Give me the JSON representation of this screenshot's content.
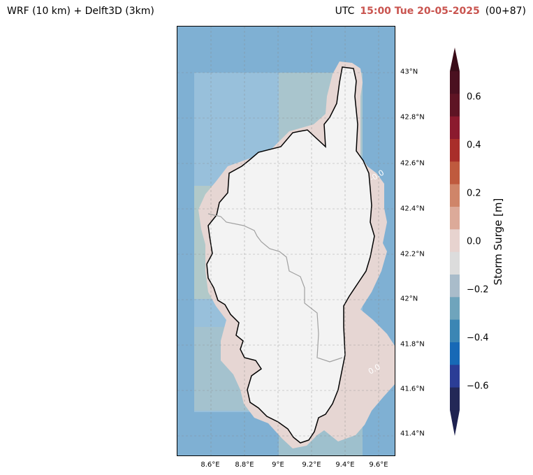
{
  "header": {
    "left_title": "WRF (10 km) + Delft3D (3km)",
    "utc_label": "UTC",
    "time": "15:00 Tue 20-05-2025",
    "forecast_hour": "(00+87)"
  },
  "map": {
    "lat_labels": [
      "43°N",
      "42.8°N",
      "42.6°N",
      "42.4°N",
      "42.2°N",
      "42°N",
      "41.8°N",
      "41.6°N",
      "41.4°N"
    ],
    "lon_labels": [
      "8.6°E",
      "8.8°E",
      "9°E",
      "9.2°E",
      "9.4°E",
      "9.6°E"
    ],
    "contour_labels": [
      "-0.0",
      "0.0"
    ],
    "colors": {
      "sea_dark": "#7fb0d3",
      "sea_light": "#9cc3dc",
      "surge_zero": "#e6d6d3",
      "land": "#f3f3f3"
    }
  },
  "colorbar": {
    "label": "Storm Surge [m]",
    "ticks": [
      "0.6",
      "0.4",
      "0.2",
      "0.0",
      "−0.2",
      "−0.4",
      "−0.6"
    ],
    "colors": [
      "#4a1020",
      "#5e1424",
      "#8b1a2e",
      "#a92e2a",
      "#bf5a3e",
      "#cf8569",
      "#dcaa99",
      "#e7d3cf",
      "#dcdcdc",
      "#a9bcca",
      "#6fa4bc",
      "#3b86b4",
      "#1769b6",
      "#2b3d96",
      "#232857"
    ],
    "extend_top_color": "#3a0c18",
    "extend_bottom_color": "#1e2250"
  }
}
